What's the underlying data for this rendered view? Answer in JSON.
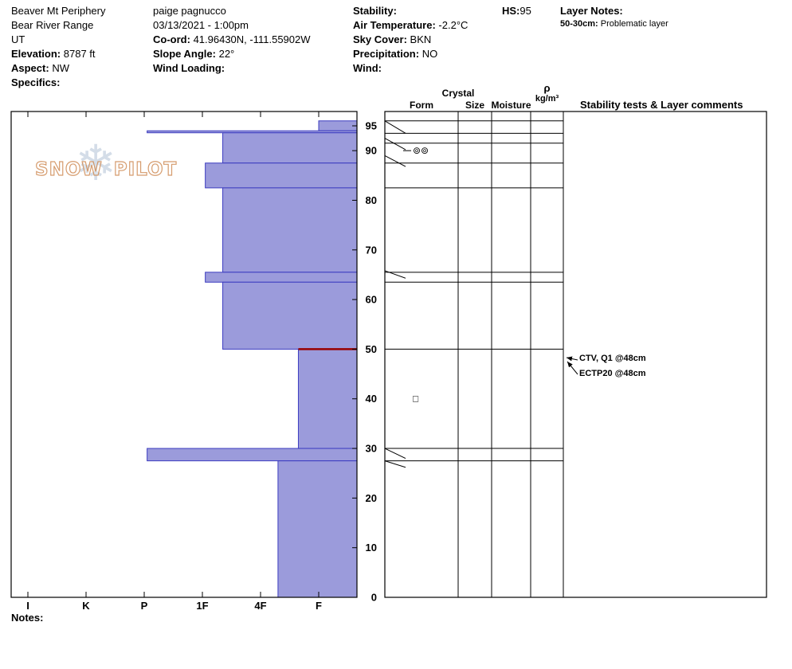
{
  "header": {
    "location": {
      "name": "Beaver Mt Periphery",
      "range": "Bear River Range",
      "state": "UT",
      "elevation_label": "Elevation:",
      "elevation_value": "8787 ft",
      "aspect_label": "Aspect:",
      "aspect_value": "NW",
      "specifics_label": "Specifics:"
    },
    "pit_info": {
      "observer": "paige pagnucco",
      "datetime": "03/13/2021 - 1:00pm",
      "coord_label": "Co-ord:",
      "coord_value": "41.96430N, -111.55902W",
      "slope_angle_label": "Slope Angle:",
      "slope_angle_value": "22°",
      "wind_loading_label": "Wind Loading:"
    },
    "weather": {
      "stability_label": "Stability:",
      "air_temperature_label": "Air Temperature:",
      "air_temperature_value": "-2.2°C",
      "sky_cover_label": "Sky Cover:",
      "sky_cover_value": "BKN",
      "precipitation_label": "Precipitation:",
      "precipitation_value": "NO",
      "wind_label": "Wind:"
    },
    "hs_label": "HS:",
    "hs_value": "95",
    "layer_notes_label": "Layer Notes:",
    "layer_note_depth": "50-30cm:",
    "layer_note_text": "Problematic layer"
  },
  "table_headers": {
    "crystal": "Crystal",
    "form": "Form",
    "size": "Size",
    "moisture": "Moisture",
    "density_rho": "ρ",
    "density_unit": "kg/m³",
    "stability": "Stability tests & Layer comments"
  },
  "watermark": {
    "flake_glyph": "❄",
    "text1": "SNOW",
    "text2": "PILOT"
  },
  "annotations": [
    {
      "text": "CTV, Q1 @48cm",
      "depth_cm": 48
    },
    {
      "text": "ECTP20 @48cm",
      "depth_cm": 48
    }
  ],
  "symbols": [
    {
      "glyph": "⊚⊚",
      "depth_cm": 90,
      "column": "form",
      "leader": true
    },
    {
      "glyph": "□",
      "depth_cm": 40,
      "column": "form",
      "leader": false
    }
  ],
  "notes_label": "Notes:",
  "chart_data": {
    "type": "bar",
    "orientation": "horizontal-depth-profile",
    "depth_unit": "cm",
    "total_height_cm": 95,
    "hardness_scale": [
      "I",
      "K",
      "P",
      "1F",
      "4F",
      "F"
    ],
    "depth_ticks": [
      95,
      90,
      80,
      70,
      60,
      50,
      40,
      30,
      20,
      10,
      0
    ],
    "layers": [
      {
        "top_cm": 96,
        "bottom_cm": 94,
        "hardness": "F",
        "h_index": 5.0
      },
      {
        "top_cm": 94,
        "bottom_cm": 93.6,
        "hardness": "P",
        "h_index": 2.05
      },
      {
        "top_cm": 93.6,
        "bottom_cm": 87.5,
        "hardness": "1F-4F",
        "h_index": 3.35
      },
      {
        "top_cm": 87.5,
        "bottom_cm": 82.5,
        "hardness": "1F",
        "h_index": 3.05
      },
      {
        "top_cm": 82.5,
        "bottom_cm": 65.5,
        "hardness": "1F-4F",
        "h_index": 3.35
      },
      {
        "top_cm": 65.5,
        "bottom_cm": 63.5,
        "hardness": "1F",
        "h_index": 3.05
      },
      {
        "top_cm": 63.5,
        "bottom_cm": 50,
        "hardness": "1F-4F",
        "h_index": 3.35
      },
      {
        "top_cm": 50,
        "bottom_cm": 30,
        "hardness": "4F-F",
        "h_index": 4.65,
        "flagged": true
      },
      {
        "top_cm": 30,
        "bottom_cm": 27.5,
        "hardness": "P",
        "h_index": 2.05
      },
      {
        "top_cm": 27.5,
        "bottom_cm": 0,
        "hardness": "4F",
        "h_index": 4.3
      }
    ],
    "row_lines_cm": [
      96,
      93.5,
      91.5,
      87.5,
      82.5,
      65.5,
      63.5,
      50,
      30,
      27.5
    ],
    "connector_ticks": [
      {
        "from_cm": 96,
        "to_cm": 93.5
      },
      {
        "from_cm": 92.5,
        "to_cm": 90.2
      },
      {
        "from_cm": 89,
        "to_cm": 86.8
      },
      {
        "from_cm": 65.8,
        "to_cm": 64.3
      },
      {
        "from_cm": 30,
        "to_cm": 28
      },
      {
        "from_cm": 27.5,
        "to_cm": 26.2
      }
    ],
    "colors": {
      "bar_fill": "#9b9bdb",
      "bar_stroke": "#3c3cc0",
      "flag": "#990000"
    }
  }
}
